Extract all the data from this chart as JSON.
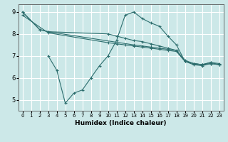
{
  "xlabel": "Humidex (Indice chaleur)",
  "background_color": "#cce8e8",
  "grid_color": "#ffffff",
  "line_color": "#2d6e6e",
  "xlim": [
    -0.5,
    23.5
  ],
  "ylim": [
    4.5,
    9.35
  ],
  "xticks": [
    0,
    1,
    2,
    3,
    4,
    5,
    6,
    7,
    8,
    9,
    10,
    11,
    12,
    13,
    14,
    15,
    16,
    17,
    18,
    19,
    20,
    21,
    22,
    23
  ],
  "yticks": [
    5,
    6,
    7,
    8,
    9
  ],
  "series": [
    {
      "x": [
        0,
        2,
        3,
        13,
        14,
        15,
        16,
        17,
        18,
        19,
        20,
        21,
        22,
        23
      ],
      "y": [
        9.0,
        8.2,
        8.1,
        7.5,
        7.45,
        7.4,
        7.35,
        7.3,
        7.25,
        6.8,
        6.65,
        6.6,
        6.7,
        6.65
      ]
    },
    {
      "x": [
        0,
        2,
        3,
        10,
        11,
        12,
        13,
        14,
        15,
        16,
        17,
        18,
        19,
        20,
        21,
        22,
        23
      ],
      "y": [
        9.0,
        8.2,
        8.1,
        8.0,
        7.9,
        7.8,
        7.7,
        7.65,
        7.55,
        7.45,
        7.35,
        7.25,
        6.75,
        6.65,
        6.6,
        6.7,
        6.6
      ]
    },
    {
      "x": [
        0,
        3,
        10,
        11,
        12,
        13,
        14,
        15,
        16,
        17,
        18,
        19,
        20,
        21,
        22,
        23
      ],
      "y": [
        8.85,
        8.05,
        7.6,
        7.55,
        7.5,
        7.45,
        7.4,
        7.35,
        7.3,
        7.25,
        7.2,
        6.75,
        6.65,
        6.6,
        6.65,
        6.6
      ]
    },
    {
      "x": [
        3,
        4,
        5,
        6,
        7,
        8,
        9,
        10,
        11,
        12,
        13,
        14,
        15,
        16,
        17,
        18,
        19,
        20,
        21,
        22,
        23
      ],
      "y": [
        7.0,
        6.35,
        4.85,
        5.3,
        5.45,
        6.0,
        6.55,
        7.0,
        7.7,
        8.85,
        9.0,
        8.7,
        8.5,
        8.35,
        7.9,
        7.5,
        6.75,
        6.6,
        6.55,
        6.65,
        6.6
      ]
    }
  ]
}
